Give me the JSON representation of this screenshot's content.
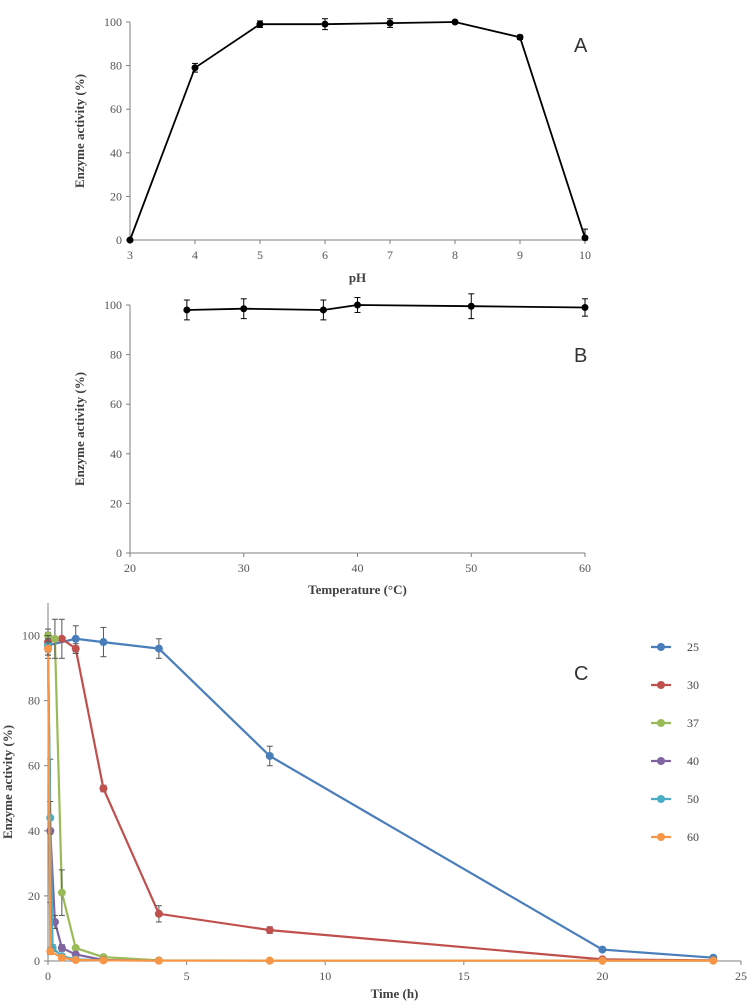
{
  "chart_data": [
    {
      "panel": "A",
      "type": "line",
      "xlabel": "pH",
      "ylabel": "Enzyme activity (%)",
      "xlim": [
        3,
        10
      ],
      "ylim": [
        0,
        100
      ],
      "xticks": [
        "3",
        "4",
        "5",
        "6",
        "7",
        "8",
        "9",
        "10"
      ],
      "yticks": [
        "0",
        "20",
        "40",
        "60",
        "80",
        "100"
      ],
      "grid": false,
      "series": [
        {
          "color": "#000000",
          "marker": "circle",
          "points": [
            {
              "x": 3,
              "y": 0,
              "err": 0
            },
            {
              "x": 4,
              "y": 79,
              "err": 2
            },
            {
              "x": 5,
              "y": 99,
              "err": 1.5
            },
            {
              "x": 6,
              "y": 99,
              "err": 2.5
            },
            {
              "x": 7,
              "y": 99.5,
              "err": 2
            },
            {
              "x": 8,
              "y": 100,
              "err": 0.5
            },
            {
              "x": 9,
              "y": 93,
              "err": 1
            },
            {
              "x": 10,
              "y": 1,
              "err": 4
            }
          ]
        }
      ]
    },
    {
      "panel": "B",
      "type": "line",
      "xlabel": "Temperature (°C)",
      "ylabel": "Enzyme activity (%)",
      "xlim": [
        20,
        60
      ],
      "ylim": [
        0,
        100
      ],
      "xticks": [
        "20",
        "30",
        "40",
        "50",
        "60"
      ],
      "yticks": [
        "0",
        "20",
        "40",
        "60",
        "80",
        "100"
      ],
      "grid": false,
      "series": [
        {
          "color": "#000000",
          "marker": "circle",
          "points": [
            {
              "x": 25,
              "y": 98,
              "err": 4
            },
            {
              "x": 30,
              "y": 98.5,
              "err": 4
            },
            {
              "x": 37,
              "y": 98,
              "err": 4
            },
            {
              "x": 40,
              "y": 100,
              "err": 3
            },
            {
              "x": 50,
              "y": 99.5,
              "err": 5
            },
            {
              "x": 60,
              "y": 99,
              "err": 3.5
            }
          ]
        }
      ]
    },
    {
      "panel": "C",
      "type": "line",
      "xlabel": "Time (h)",
      "ylabel": "Enzyme activity (%)",
      "xlim": [
        0,
        25
      ],
      "ylim": [
        0,
        110
      ],
      "xticks": [
        "0",
        "5",
        "10",
        "15",
        "20",
        "25"
      ],
      "yticks": [
        "0",
        "20",
        "40",
        "60",
        "80",
        "100"
      ],
      "grid": false,
      "legend_position": "right",
      "series": [
        {
          "name": "25",
          "color": "#4a7ebb",
          "points": [
            {
              "x": 0,
              "y": 97,
              "err": 3
            },
            {
              "x": 1,
              "y": 99,
              "err": 4
            },
            {
              "x": 2,
              "y": 98,
              "err": 4.5
            },
            {
              "x": 4,
              "y": 96,
              "err": 3
            },
            {
              "x": 8,
              "y": 63,
              "err": 3
            },
            {
              "x": 20,
              "y": 3.5,
              "err": 0.5
            },
            {
              "x": 24,
              "y": 1,
              "err": 0.5
            }
          ]
        },
        {
          "name": "30",
          "color": "#c0504d",
          "points": [
            {
              "x": 0,
              "y": 98,
              "err": 3
            },
            {
              "x": 0.5,
              "y": 99,
              "err": 6
            },
            {
              "x": 1,
              "y": 96,
              "err": 1.5
            },
            {
              "x": 2,
              "y": 53,
              "err": 1
            },
            {
              "x": 4,
              "y": 14.5,
              "err": 2.5
            },
            {
              "x": 8,
              "y": 9.5,
              "err": 1
            },
            {
              "x": 20,
              "y": 0.5,
              "err": 0.3
            },
            {
              "x": 24,
              "y": 0.2,
              "err": 0.2
            }
          ]
        },
        {
          "name": "37",
          "color": "#9bbb59",
          "points": [
            {
              "x": 0,
              "y": 100,
              "err": 2
            },
            {
              "x": 0.25,
              "y": 99,
              "err": 6
            },
            {
              "x": 0.5,
              "y": 21,
              "err": 7
            },
            {
              "x": 1,
              "y": 4,
              "err": 0.5
            },
            {
              "x": 2,
              "y": 1.2,
              "err": 0.3
            },
            {
              "x": 4,
              "y": 0.2,
              "err": 0.2
            },
            {
              "x": 8,
              "y": 0.1,
              "err": 0.1
            },
            {
              "x": 24,
              "y": 0.1,
              "err": 0.1
            }
          ]
        },
        {
          "name": "40",
          "color": "#8064a2",
          "points": [
            {
              "x": 0,
              "y": 96,
              "err": 3
            },
            {
              "x": 0.083,
              "y": 40,
              "err": 22
            },
            {
              "x": 0.25,
              "y": 12,
              "err": 2
            },
            {
              "x": 0.5,
              "y": 4,
              "err": 1
            },
            {
              "x": 1,
              "y": 2,
              "err": 0.5
            },
            {
              "x": 2,
              "y": 0.3,
              "err": 0.2
            },
            {
              "x": 4,
              "y": 0.1,
              "err": 0.1
            }
          ]
        },
        {
          "name": "50",
          "color": "#4bacc6",
          "points": [
            {
              "x": 0,
              "y": 97,
              "err": 3
            },
            {
              "x": 0.083,
              "y": 44,
              "err": 5
            },
            {
              "x": 0.167,
              "y": 4,
              "err": 1
            },
            {
              "x": 0.5,
              "y": 1.5,
              "err": 0.5
            },
            {
              "x": 1,
              "y": 0.5,
              "err": 0.3
            },
            {
              "x": 2,
              "y": 0.2,
              "err": 0.1
            }
          ]
        },
        {
          "name": "60",
          "color": "#f79646",
          "points": [
            {
              "x": 0,
              "y": 96,
              "err": 2
            },
            {
              "x": 0.083,
              "y": 3,
              "err": 1
            },
            {
              "x": 0.5,
              "y": 1,
              "err": 0.5
            },
            {
              "x": 1,
              "y": 0.3,
              "err": 0.2
            },
            {
              "x": 2,
              "y": 0.2,
              "err": 0.1
            },
            {
              "x": 4,
              "y": 0.1,
              "err": 0.1
            },
            {
              "x": 8,
              "y": 0.1,
              "err": 0.1
            },
            {
              "x": 20,
              "y": 0.1,
              "err": 0.1
            },
            {
              "x": 24,
              "y": 0.1,
              "err": 0.1
            }
          ]
        }
      ]
    }
  ]
}
